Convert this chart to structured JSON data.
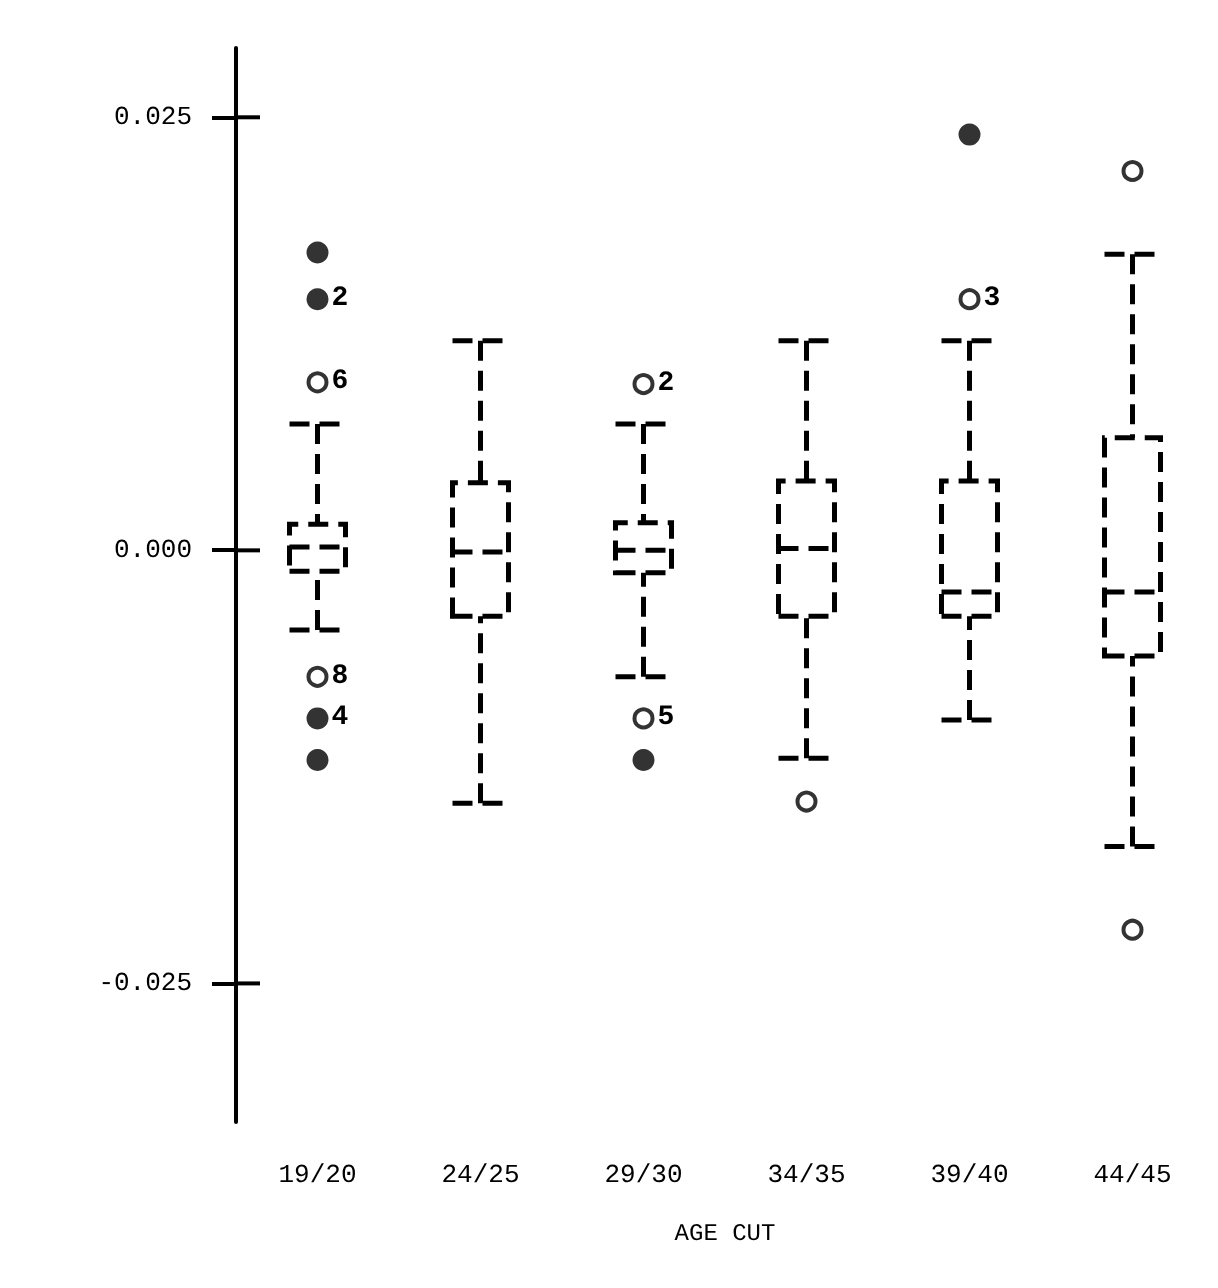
{
  "chart_data": {
    "type": "box",
    "xlabel": "AGE CUT",
    "categories": [
      "19/20",
      "24/25",
      "29/30",
      "34/35",
      "39/40",
      "44/45"
    ],
    "ylim": [
      -0.033,
      0.029
    ],
    "yticks": [
      {
        "value": -0.025,
        "label": "-0.025"
      },
      {
        "value": 0,
        "label": "0.000"
      },
      {
        "value": 0.025,
        "label": "0.025"
      }
    ],
    "grid": false,
    "series": [
      {
        "color": "#000000",
        "boxes": [
          {
            "low": -0.0046,
            "q1": -0.0012,
            "median": 0.0002,
            "q3": 0.0015,
            "high": 0.0073
          },
          {
            "low": -0.0146,
            "q1": -0.0038,
            "median": -0.0001,
            "q3": 0.0039,
            "high": 0.0121
          },
          {
            "low": -0.0073,
            "q1": -0.0013,
            "median": 0.0,
            "q3": 0.0016,
            "high": 0.0073
          },
          {
            "low": -0.012,
            "q1": -0.0038,
            "median": 0.0001,
            "q3": 0.004,
            "high": 0.0121
          },
          {
            "low": -0.0098,
            "q1": -0.0038,
            "median": -0.0024,
            "q3": 0.004,
            "high": 0.0121
          },
          {
            "low": -0.0171,
            "q1": -0.0061,
            "median": -0.0024,
            "q3": 0.0065,
            "high": 0.0171
          }
        ]
      },
      {
        "type": "scatter",
        "color": "#000000",
        "x": [
          "19/20",
          "19/20",
          "29/30",
          "29/30",
          "34/35",
          "39/40",
          "44/45",
          "44/45"
        ],
        "values": [
          0.0097,
          -0.0073,
          0.0096,
          -0.0097,
          -0.0145,
          0.0145,
          0.0219,
          -0.0219
        ]
      },
      {
        "type": "scatter",
        "marker": "circle",
        "color": "#000000",
        "x": [
          "19/20",
          "19/20",
          "19/20",
          "19/20",
          "29/30",
          "39/40"
        ],
        "values": [
          0.0172,
          0.0145,
          -0.0097,
          -0.0121,
          -0.0121,
          0.024
        ]
      }
    ],
    "annotations": [
      {
        "text": "2",
        "x": "19/20",
        "y": 0.0145
      },
      {
        "text": "6",
        "x": "19/20",
        "y": 0.0097
      },
      {
        "text": "8",
        "x": "19/20",
        "y": -0.0073
      },
      {
        "text": "4",
        "x": "19/20",
        "y": -0.0097
      },
      {
        "text": "2",
        "x": "29/30",
        "y": 0.0096
      },
      {
        "text": "5",
        "x": "29/30",
        "y": -0.0097
      },
      {
        "text": "3",
        "x": "39/40",
        "y": 0.0145
      }
    ]
  }
}
